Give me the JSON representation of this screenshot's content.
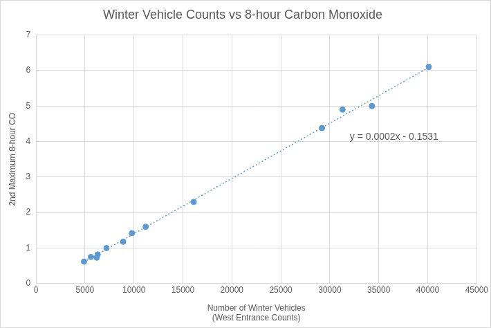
{
  "chart_data": {
    "type": "scatter",
    "title": "Winter Vehicle Counts vs 8-hour Carbon Monoxide",
    "x_label": [
      "Number of Winter Vehicles",
      "(West Entrance Counts)"
    ],
    "y_label": "2nd Maximum 8-hour CO",
    "series": [
      {
        "type": "scatter",
        "marker": "circle",
        "color": "#5b9bd5",
        "x": [
          4900,
          5600,
          6200,
          6300,
          7200,
          8900,
          9800,
          11200,
          16100,
          29200,
          31300,
          34300,
          40100
        ],
        "values": [
          0.62,
          0.75,
          0.73,
          0.82,
          1.0,
          1.18,
          1.42,
          1.6,
          2.3,
          4.38,
          4.9,
          5.0,
          6.1
        ]
      },
      {
        "type": "line",
        "line_style": "dotted",
        "color": "#5b9bd5",
        "x": [
          4900,
          40000
        ],
        "values": [
          0.61,
          6.07
        ]
      }
    ],
    "annotations": [
      "y = 0.0002x - 0.1531"
    ],
    "xlim": [
      0,
      45000
    ],
    "xticks": [
      0,
      5000,
      10000,
      15000,
      20000,
      25000,
      30000,
      35000,
      40000,
      45000
    ],
    "ylim": [
      0,
      7
    ],
    "yticks": [
      0,
      1,
      2,
      3,
      4,
      5,
      6,
      7
    ],
    "grid": true
  }
}
